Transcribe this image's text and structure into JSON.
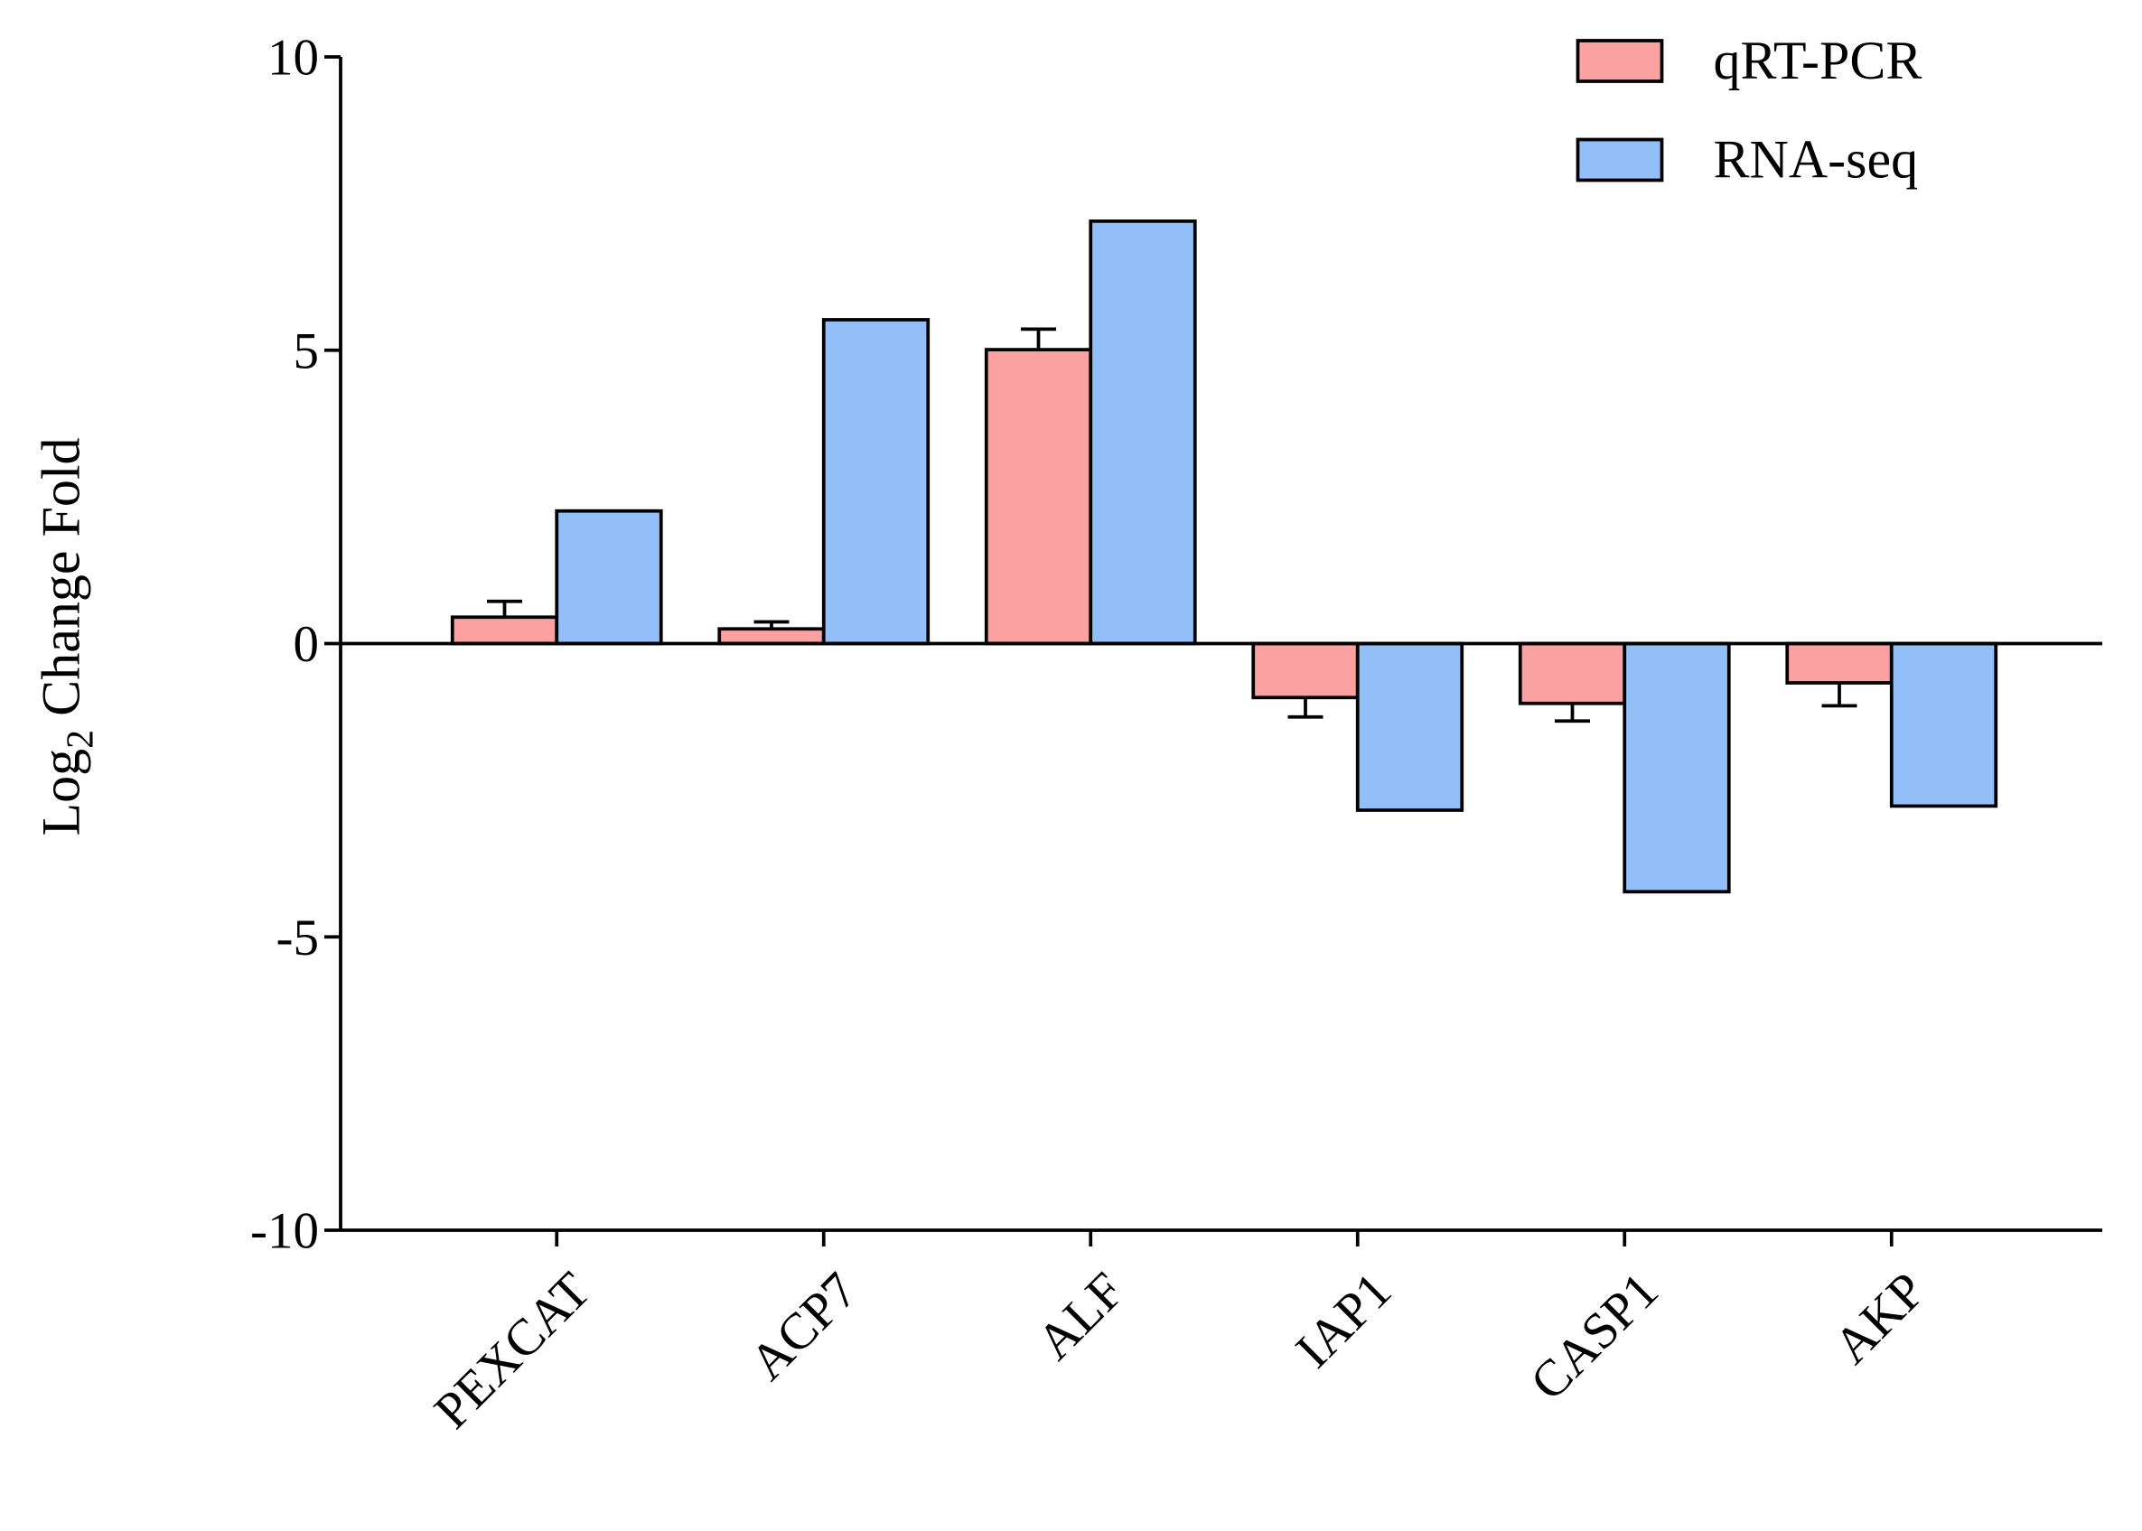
{
  "chart_data": {
    "type": "bar",
    "y_label": {
      "base": "Log",
      "subscript": "2",
      "suffix": "Change Fold"
    },
    "categories": [
      "PEXCAT",
      "ACP7",
      "ALF",
      "IAP1",
      "CASP1",
      "AKP"
    ],
    "series": [
      {
        "name": "qRT-PCR",
        "color": "#fca1a1",
        "values": [
          0.45,
          0.25,
          5.01,
          -0.92,
          -1.02,
          -0.67
        ],
        "errors": [
          0.27,
          0.12,
          0.35,
          0.33,
          0.3,
          0.39
        ]
      },
      {
        "name": "RNA-seq",
        "color": "#92bff8",
        "values": [
          2.26,
          5.52,
          7.2,
          -2.84,
          -4.23,
          -2.77
        ]
      }
    ],
    "ylim": [
      -10,
      10
    ],
    "yticks": [
      -10,
      -5,
      0,
      5,
      10
    ],
    "grid": false,
    "legend": "top-right"
  }
}
